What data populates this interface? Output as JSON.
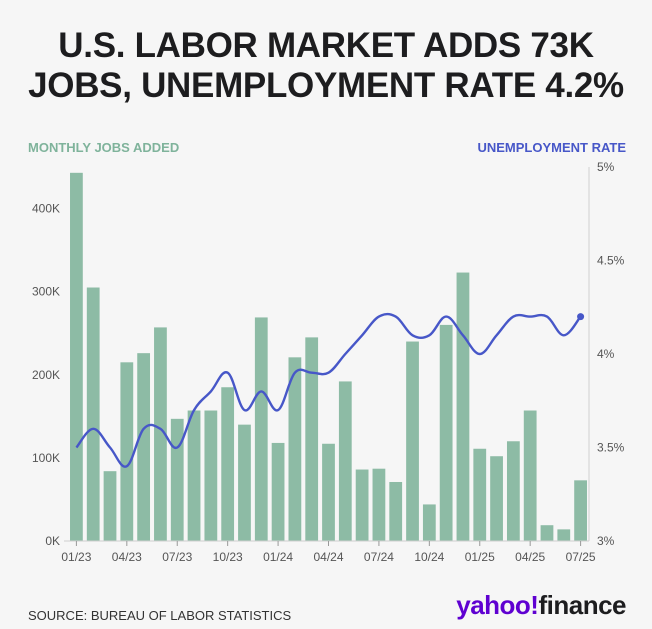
{
  "title_lines": [
    "U.S. LABOR MARKET ADDS 73K",
    "JOBS, UNEMPLOYMENT RATE 4.2%"
  ],
  "left_axis_label": "MONTHLY JOBS ADDED",
  "right_axis_label": "UNEMPLOYMENT RATE",
  "source": "SOURCE: BUREAU OF LABOR STATISTICS",
  "logo": {
    "part1": "yahoo!",
    "part2": "finance"
  },
  "colors": {
    "bars": "#8dbba5",
    "line": "#4757c8",
    "left_label": "#7fb39b",
    "right_label": "#4757c8"
  },
  "chart_data": {
    "type": "bar",
    "categories": [
      "2023-01",
      "2023-02",
      "2023-03",
      "2023-04",
      "2023-05",
      "2023-06",
      "2023-07",
      "2023-08",
      "2023-09",
      "2023-10",
      "2023-11",
      "2023-12",
      "2024-01",
      "2024-02",
      "2024-03",
      "2024-04",
      "2024-05",
      "2024-06",
      "2024-07",
      "2024-08",
      "2024-09",
      "2024-10",
      "2024-11",
      "2024-12",
      "2025-01",
      "2025-02",
      "2025-03",
      "2025-04",
      "2025-05",
      "2025-06",
      "2025-07"
    ],
    "x_tick_labels": [
      "01/23",
      "04/23",
      "07/23",
      "10/23",
      "01/24",
      "04/24",
      "07/24",
      "10/24",
      "01/25",
      "04/25",
      "07/25"
    ],
    "x_tick_indices": [
      0,
      3,
      6,
      9,
      12,
      15,
      18,
      21,
      24,
      27,
      30
    ],
    "series": [
      {
        "name": "MONTHLY JOBS ADDED",
        "axis": "left",
        "type": "bar",
        "values": [
          443000,
          305000,
          84000,
          215000,
          226000,
          257000,
          147000,
          157000,
          157000,
          185000,
          140000,
          269000,
          118000,
          221000,
          245000,
          117000,
          192000,
          86000,
          87000,
          71000,
          240000,
          44000,
          260000,
          323000,
          111000,
          102000,
          120000,
          157000,
          19000,
          14000,
          73000
        ]
      },
      {
        "name": "UNEMPLOYMENT RATE",
        "axis": "right",
        "type": "line",
        "values": [
          3.5,
          3.6,
          3.5,
          3.4,
          3.6,
          3.6,
          3.5,
          3.7,
          3.8,
          3.9,
          3.7,
          3.8,
          3.7,
          3.9,
          3.9,
          3.9,
          4.0,
          4.1,
          4.2,
          4.2,
          4.1,
          4.1,
          4.2,
          4.1,
          4.0,
          4.1,
          4.2,
          4.2,
          4.2,
          4.1,
          4.2
        ]
      }
    ],
    "left_axis": {
      "ticks": [
        0,
        100000,
        200000,
        300000,
        400000
      ],
      "tick_labels": [
        "0K",
        "100K",
        "200K",
        "300K",
        "400K"
      ],
      "ylim": [
        0,
        450000
      ]
    },
    "right_axis": {
      "ticks": [
        3,
        3.5,
        4,
        4.5,
        5
      ],
      "tick_labels": [
        "3%",
        "3.5%",
        "4%",
        "4.5%",
        "5%"
      ],
      "ylim": [
        3,
        5
      ]
    },
    "grid": false,
    "legend": "none"
  }
}
